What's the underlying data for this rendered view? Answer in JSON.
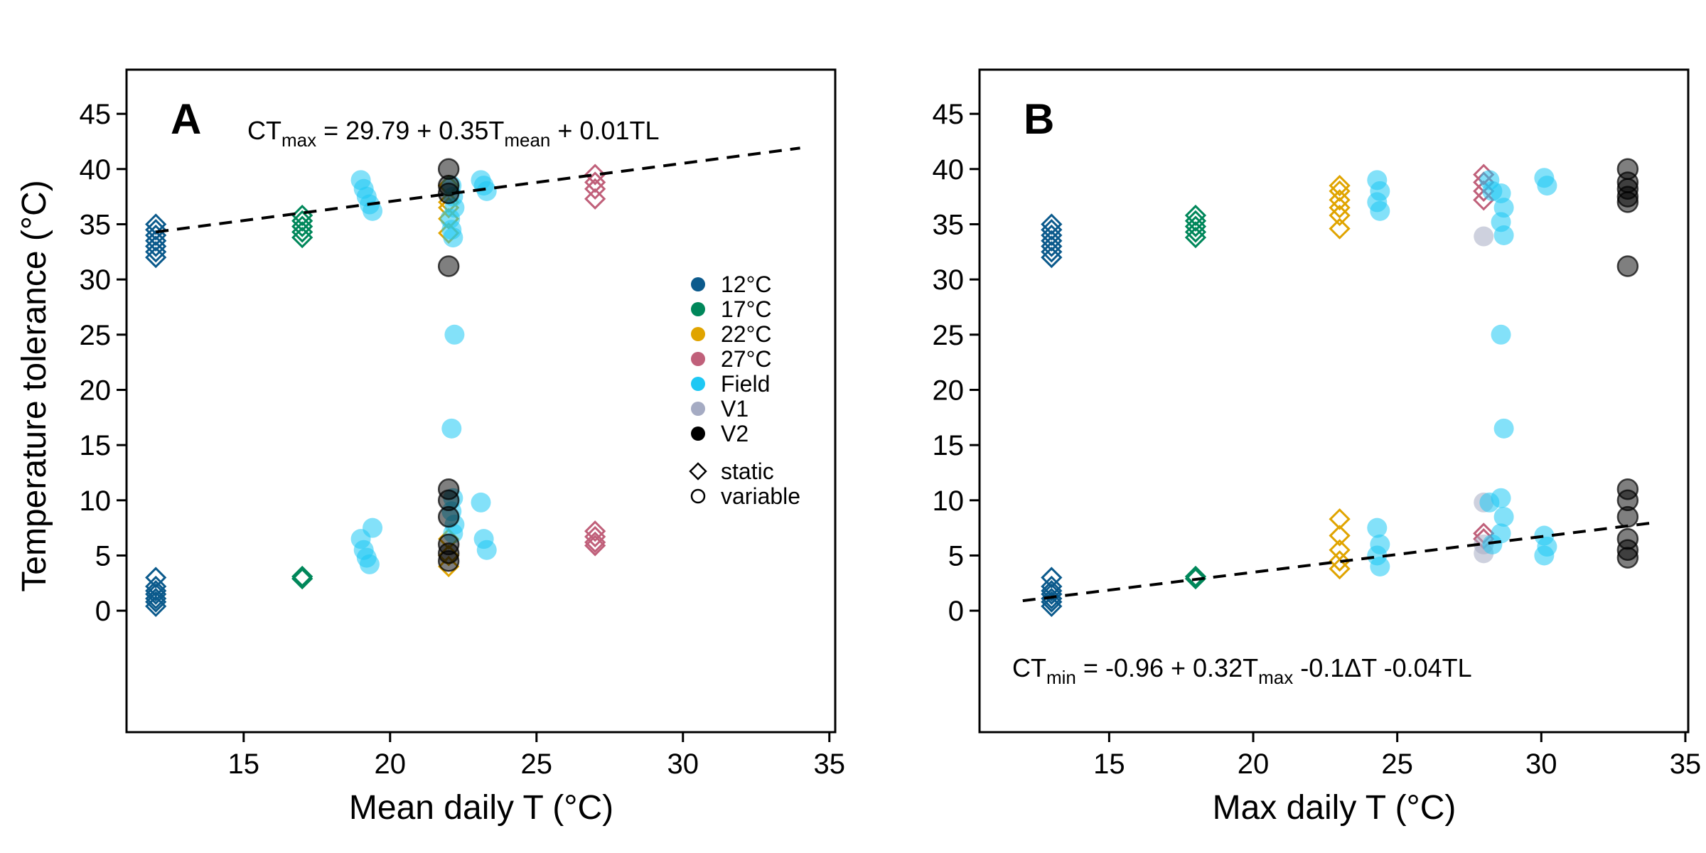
{
  "colors": {
    "12C": "#0b5a8c",
    "17C": "#00875a",
    "22C": "#e0a400",
    "27C": "#c0607a",
    "Field": "#1ec8f4",
    "V1": "#a5abc3",
    "V2": "#000000",
    "trendline": "#000000"
  },
  "legend": {
    "groups": [
      {
        "key": "12C",
        "label": "12°C"
      },
      {
        "key": "17C",
        "label": "17°C"
      },
      {
        "key": "22C",
        "label": "22°C"
      },
      {
        "key": "27C",
        "label": "27°C"
      },
      {
        "key": "Field",
        "label": "Field"
      },
      {
        "key": "V1",
        "label": "V1"
      },
      {
        "key": "V2",
        "label": "V2"
      }
    ],
    "shapes": [
      {
        "shape": "diamond",
        "label": "static"
      },
      {
        "shape": "circle",
        "label": "variable"
      }
    ]
  },
  "chart_data": [
    {
      "panel": "A",
      "type": "scatter",
      "xlabel": "Mean daily T (°C)",
      "ylabel": "Temperature tolerance (°C)",
      "xlim": [
        11,
        35.2
      ],
      "ylim": [
        -11,
        49
      ],
      "xticks": [
        15,
        20,
        25,
        30,
        35
      ],
      "yticks": [
        0,
        5,
        10,
        15,
        20,
        25,
        30,
        35,
        40,
        45
      ],
      "equation": {
        "lhs": "CT",
        "lhs_sub": "max",
        "rhs": "29.79 + 0.35T",
        "rhs_sub": "mean",
        "tail": " + 0.01TL"
      },
      "trendline": {
        "x": [
          12,
          34
        ],
        "y": [
          34.3,
          41.9
        ]
      },
      "groups": [
        {
          "key": "12C",
          "shape": "diamond",
          "x": [
            12,
            12,
            12,
            12,
            12,
            12,
            12,
            12,
            12,
            12,
            12,
            12,
            12,
            12
          ],
          "y": [
            35,
            34.5,
            34,
            33.5,
            33,
            32.5,
            32,
            3,
            2.2,
            1.8,
            1.5,
            1.1,
            0.8,
            0.4
          ]
        },
        {
          "key": "17C",
          "shape": "diamond",
          "x": [
            17,
            17,
            17,
            17,
            17,
            17,
            17
          ],
          "y": [
            35.8,
            35.3,
            34.8,
            34.3,
            33.8,
            3.1,
            2.9
          ]
        },
        {
          "key": "22C",
          "shape": "diamond",
          "x": [
            22,
            22,
            22,
            22,
            22,
            22,
            22,
            22
          ],
          "y": [
            38.5,
            37,
            36.5,
            35.5,
            34.2,
            6.5,
            5,
            4
          ]
        },
        {
          "key": "27C",
          "shape": "diamond",
          "x": [
            27,
            27,
            27,
            27,
            27,
            27,
            27,
            27
          ],
          "y": [
            39.5,
            38.8,
            38.2,
            37.3,
            7.2,
            6.7,
            6.2,
            5.9
          ]
        },
        {
          "key": "Field",
          "shape": "circle",
          "x": [
            19,
            19.1,
            19.2,
            19.3,
            19.4,
            19,
            19.1,
            19.2,
            19.3,
            19.4,
            22.1,
            22.15,
            22.2,
            22.05,
            22.1,
            22.15,
            22.2,
            22.1,
            22.15,
            22.1,
            22.2,
            22.15,
            23.1,
            23.2,
            23.3,
            23.1,
            23.2,
            23.3
          ],
          "y": [
            39,
            38.2,
            37.5,
            36.8,
            36.2,
            6.5,
            5.5,
            4.8,
            4.2,
            7.5,
            38.5,
            37.5,
            36.5,
            35.5,
            34.5,
            33.8,
            25,
            16.5,
            10.2,
            9,
            7.8,
            7,
            39,
            38.5,
            38,
            9.8,
            6.5,
            5.5
          ]
        },
        {
          "key": "V2",
          "shape": "circle",
          "x": [
            22,
            22,
            22,
            22,
            22,
            22,
            22,
            22,
            22,
            22
          ],
          "y": [
            40,
            38.5,
            37.8,
            31.2,
            11,
            10,
            8.5,
            6,
            5.2,
            4.5
          ]
        }
      ]
    },
    {
      "panel": "B",
      "type": "scatter",
      "xlabel": "Max daily T (°C)",
      "ylabel": "",
      "xlim": [
        10.5,
        35.1
      ],
      "ylim": [
        -11,
        49
      ],
      "xticks": [
        15,
        20,
        25,
        30,
        35
      ],
      "yticks": [
        0,
        5,
        10,
        15,
        20,
        25,
        30,
        35,
        40,
        45
      ],
      "equation": {
        "lhs": "CT",
        "lhs_sub": "min",
        "rhs": " -0.96 + 0.32T",
        "rhs_sub": "max",
        "tail": " -0.1ΔT -0.04TL"
      },
      "trendline": {
        "x": [
          12,
          34
        ],
        "y": [
          0.9,
          8
        ]
      },
      "groups": [
        {
          "key": "12C",
          "shape": "diamond",
          "x": [
            13,
            13,
            13,
            13,
            13,
            13,
            13,
            13,
            13,
            13,
            13,
            13,
            13,
            13
          ],
          "y": [
            35,
            34.5,
            34,
            33.5,
            33,
            32.5,
            32,
            3,
            2.2,
            1.8,
            1.5,
            1.1,
            0.8,
            0.4
          ]
        },
        {
          "key": "17C",
          "shape": "diamond",
          "x": [
            18,
            18,
            18,
            18,
            18,
            18,
            18
          ],
          "y": [
            35.8,
            35.3,
            34.8,
            34.3,
            33.8,
            3.1,
            2.9
          ]
        },
        {
          "key": "22C",
          "shape": "diamond",
          "x": [
            23,
            23,
            23,
            23,
            23,
            23,
            23,
            23,
            23,
            23,
            23
          ],
          "y": [
            38.5,
            38,
            37.2,
            36.5,
            35.8,
            34.6,
            8.3,
            6.8,
            5.5,
            4.5,
            3.8
          ]
        },
        {
          "key": "27C",
          "shape": "diamond",
          "x": [
            28,
            28,
            28,
            28,
            28,
            28
          ],
          "y": [
            39.5,
            38.8,
            38,
            37.2,
            7,
            6.5
          ]
        },
        {
          "key": "V1",
          "shape": "circle",
          "x": [
            28,
            28,
            28,
            28
          ],
          "y": [
            33.9,
            9.8,
            6,
            5.2
          ]
        },
        {
          "key": "Field",
          "shape": "circle",
          "x": [
            24.3,
            24.4,
            24.3,
            24.4,
            24.3,
            24.4,
            24.3,
            24.4,
            28.2,
            28.3,
            28.2,
            28.3,
            28.6,
            28.7,
            28.6,
            28.7,
            28.6,
            28.7,
            28.6,
            28.7,
            28.6,
            30.1,
            30.2,
            30.1,
            30.2,
            30.1
          ],
          "y": [
            39,
            38,
            37,
            36.2,
            7.5,
            6,
            5,
            4,
            39,
            38,
            9.8,
            6,
            37.8,
            36.5,
            35.2,
            34,
            25,
            16.5,
            10.2,
            8.5,
            7,
            39.2,
            38.5,
            6.8,
            5.8,
            5
          ]
        },
        {
          "key": "V2",
          "shape": "circle",
          "x": [
            33,
            33,
            33,
            33,
            33,
            33,
            33,
            33,
            33,
            33,
            33,
            33
          ],
          "y": [
            40,
            38.8,
            38.2,
            37.5,
            37,
            31.2,
            11,
            10,
            8.5,
            6.5,
            5.5,
            4.8
          ]
        }
      ]
    }
  ]
}
